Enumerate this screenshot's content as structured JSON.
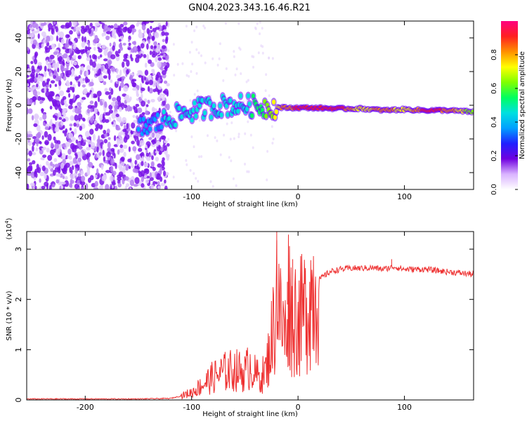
{
  "title": "GN04.2023.343.16.46.R21",
  "chart_data": [
    {
      "type": "heatmap",
      "xlabel": "Height of straight line (km)",
      "ylabel": "Frequency (Hz)",
      "xlim": [
        -255,
        165
      ],
      "ylim": [
        -50,
        50
      ],
      "xticks": [
        -200,
        -100,
        0,
        100
      ],
      "yticks": [
        -40,
        -20,
        0,
        20,
        40
      ],
      "colorbar": {
        "label": "Normalized spectral amplitude",
        "range": [
          0,
          1
        ],
        "ticks": [
          0.0,
          0.2,
          0.4,
          0.6,
          0.8
        ],
        "colors": [
          "#ffffff",
          "#d9b3ff",
          "#7000e0",
          "#2020ff",
          "#00a0ff",
          "#00e0e0",
          "#00ff60",
          "#80ff00",
          "#ffff00",
          "#ff9000",
          "#ff2020",
          "#ff0080"
        ]
      },
      "ridge": {
        "x": [
          -150,
          -130,
          -110,
          -90,
          -70,
          -50,
          -30,
          -10,
          10,
          40,
          60,
          80,
          100,
          120,
          140,
          165
        ],
        "frequency": [
          -14,
          -10,
          -5,
          -2,
          0,
          0,
          -1,
          -1.5,
          -1.5,
          -2,
          -2,
          -3,
          -2.5,
          -3,
          -3,
          -4
        ],
        "amplitude": [
          0.35,
          0.4,
          0.45,
          0.45,
          0.45,
          0.45,
          0.6,
          0.85,
          0.9,
          0.9,
          0.7,
          0.85,
          0.7,
          0.9,
          0.85,
          0.6
        ]
      }
    },
    {
      "type": "line",
      "xlabel": "Height of straight line (km)",
      "ylabel": "SNR (10 * v/v)",
      "scale_label": "(x10",
      "scale_exp": "4",
      "scale_close": ")",
      "xlim": [
        -255,
        165
      ],
      "ylim": [
        0,
        3.35
      ],
      "xticks": [
        -200,
        -100,
        0,
        100
      ],
      "yticks": [
        0,
        1,
        2,
        3
      ],
      "color": "#ee3030",
      "x": [
        -255,
        -150,
        -120,
        -110,
        -100,
        -90,
        -80,
        -70,
        -60,
        -50,
        -45,
        -40,
        -35,
        -30,
        -25,
        -22,
        -20,
        -18,
        -15,
        -12,
        -10,
        -8,
        -5,
        -2,
        0,
        5,
        10,
        15,
        20,
        30,
        40,
        50,
        60,
        70,
        80,
        90,
        100,
        120,
        140,
        165
      ],
      "y": [
        0.02,
        0.02,
        0.03,
        0.08,
        0.15,
        0.3,
        0.45,
        0.55,
        0.6,
        0.55,
        0.7,
        0.5,
        0.45,
        0.6,
        1.2,
        1.6,
        2.4,
        1.8,
        1.5,
        1.3,
        1.9,
        2.2,
        1.4,
        1.8,
        1.6,
        1.7,
        2.0,
        2.2,
        2.4,
        2.55,
        2.6,
        2.62,
        2.62,
        2.63,
        2.6,
        2.65,
        2.6,
        2.6,
        2.55,
        2.5
      ],
      "peaks": [
        {
          "x": -20,
          "y": 3.35
        },
        {
          "x": -10,
          "y": 2.35
        },
        {
          "x": -5,
          "y": 2.8
        },
        {
          "x": 5,
          "y": 2.2
        },
        {
          "x": 88,
          "y": 2.8
        }
      ]
    }
  ]
}
